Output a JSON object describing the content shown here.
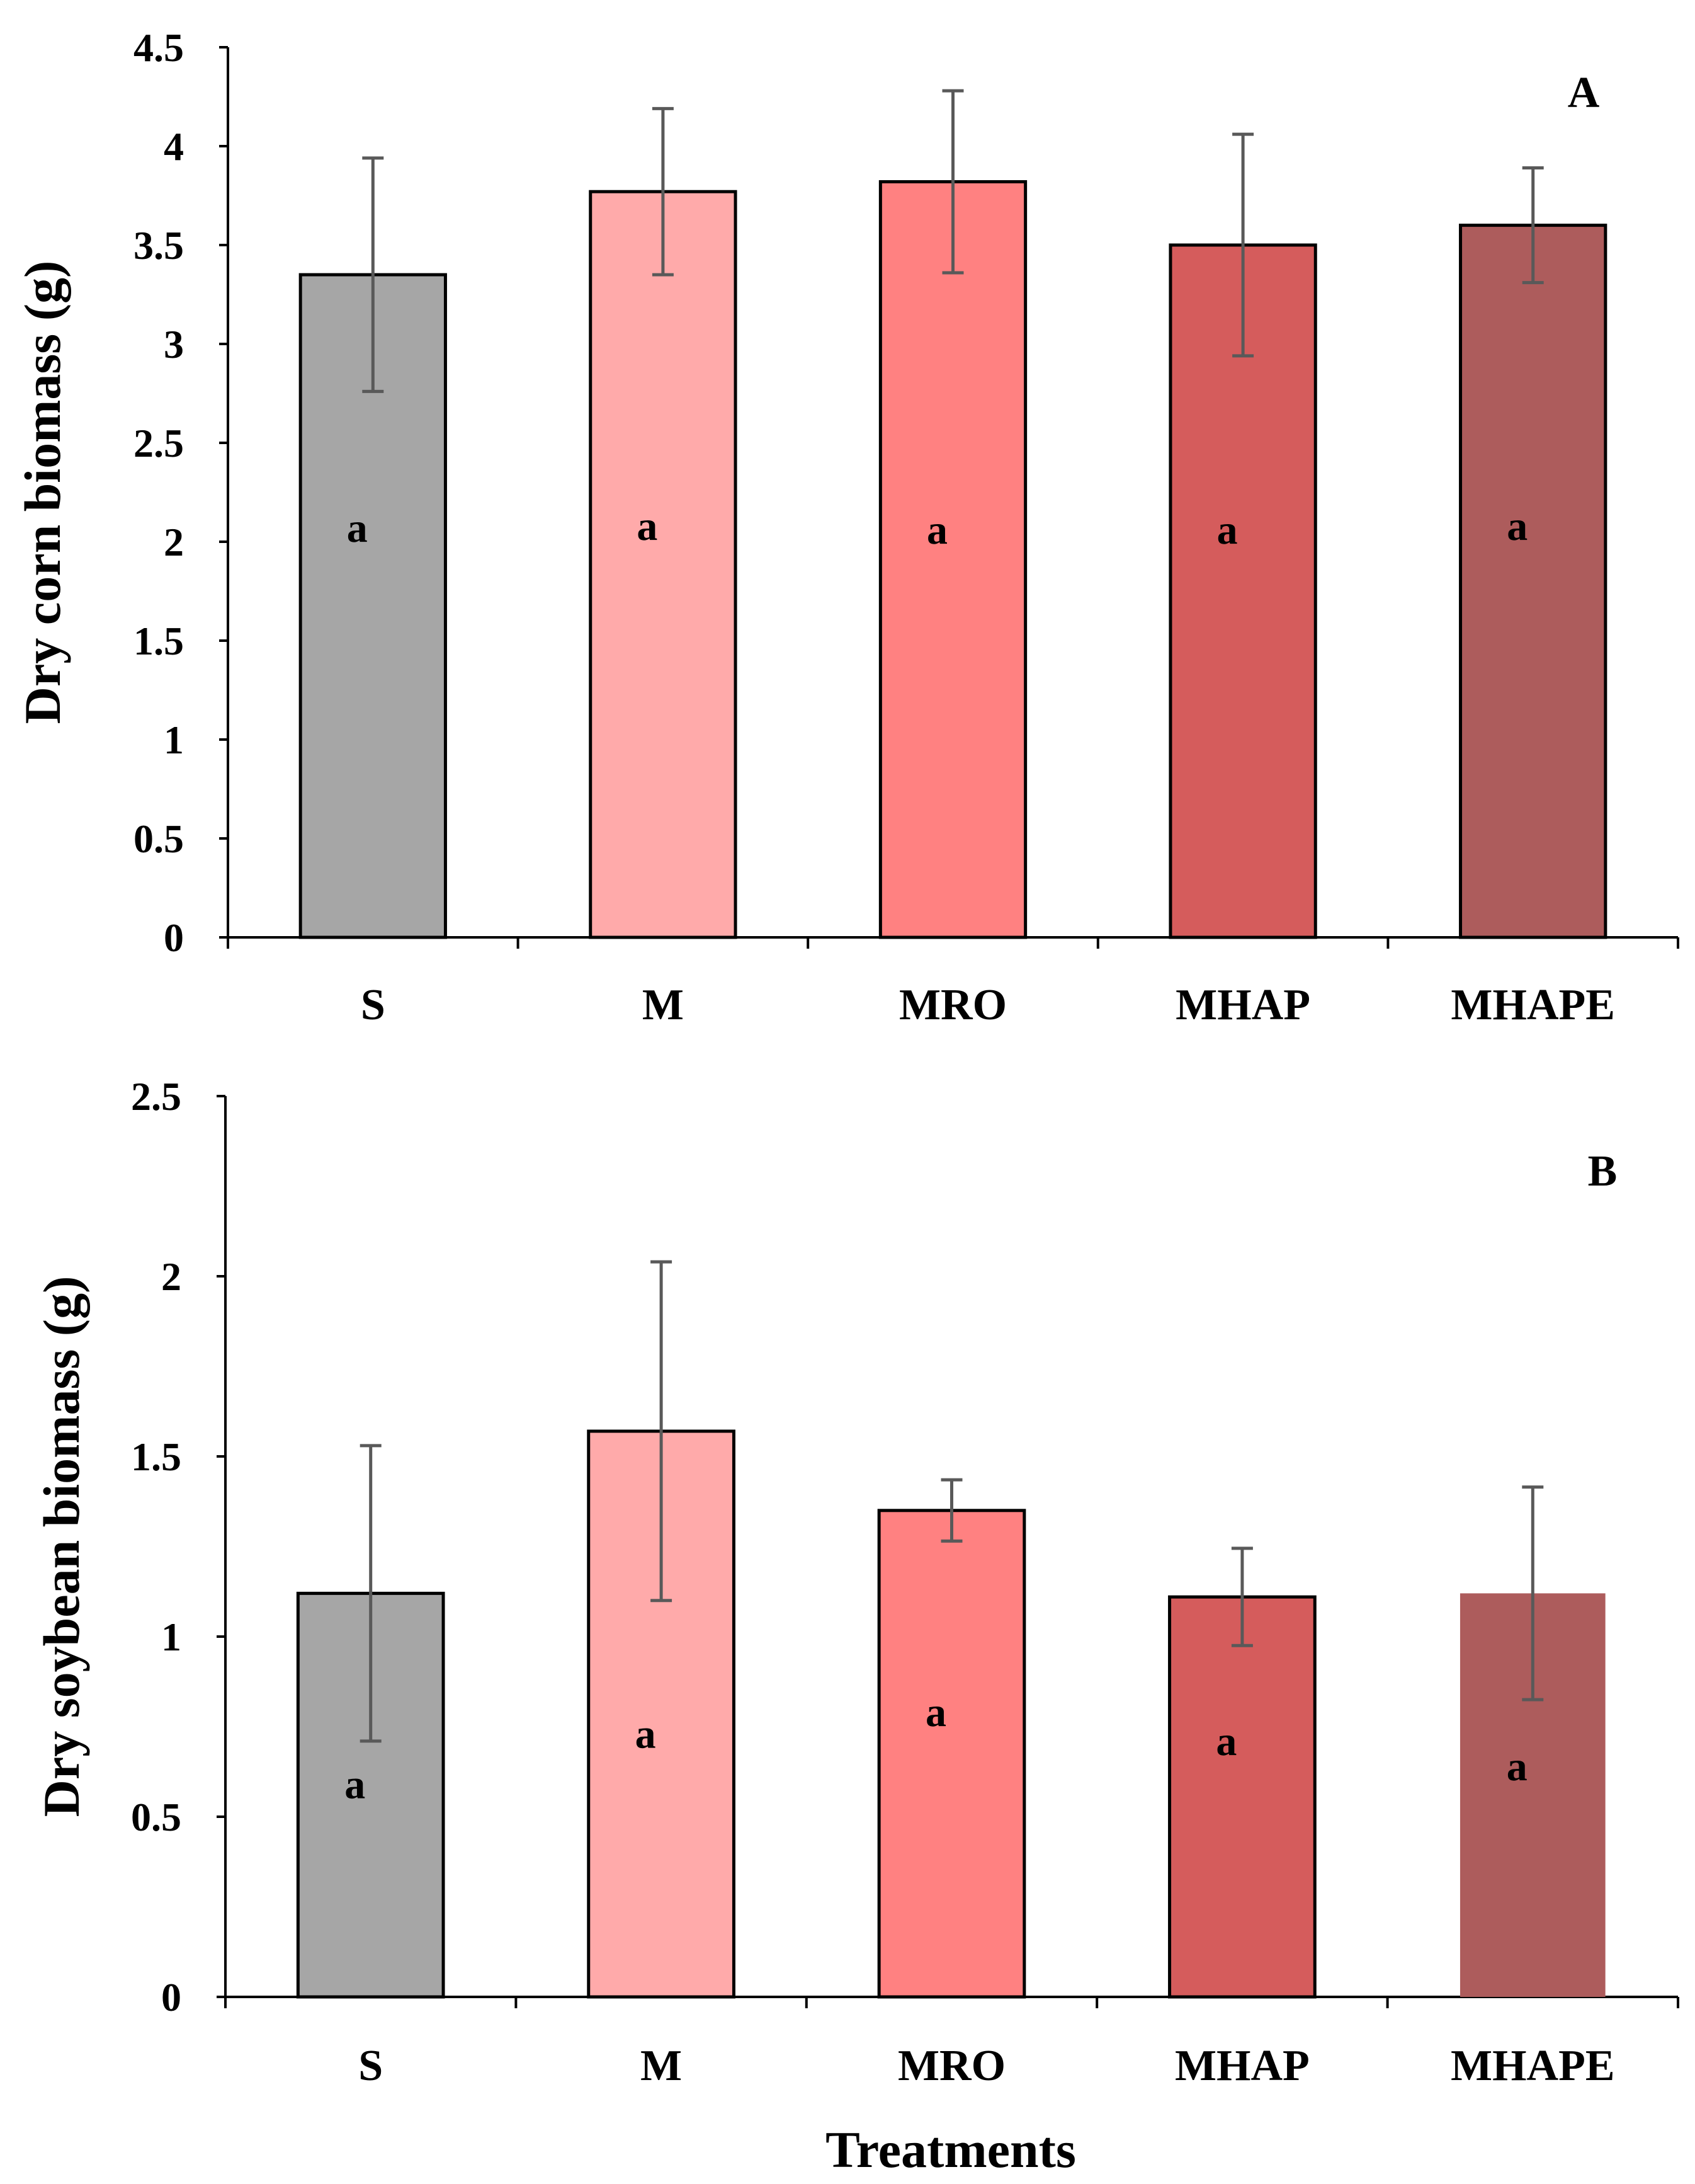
{
  "figure": {
    "xlabel": "Treatments"
  },
  "chart_data": [
    {
      "type": "bar",
      "panel": "A",
      "title": "",
      "xlabel": "",
      "ylabel": "Dry corn  biomass (g)",
      "ylim": [
        0,
        4.5
      ],
      "ytick_step": 0.5,
      "yticks": [
        "0",
        "0.5",
        "1",
        "1.5",
        "2",
        "2.5",
        "3",
        "3.5",
        "4",
        "4.5"
      ],
      "grid": false,
      "legend": "none",
      "categories": [
        "S",
        "M",
        "MRO",
        "MHAP",
        "MHAPE"
      ],
      "values": [
        3.35,
        3.77,
        3.82,
        3.5,
        3.6
      ],
      "errors": [
        0.59,
        0.42,
        0.46,
        0.56,
        0.29
      ],
      "significance": [
        "a",
        "a",
        "a",
        "a",
        "a"
      ],
      "significance_y": [
        2.07,
        2.08,
        2.06,
        2.06,
        2.08
      ],
      "colors": [
        "#a6a6a6",
        "#ffaaaa",
        "#ff8181",
        "#d55c5c",
        "#ad5c5c"
      ],
      "outlined": [
        true,
        true,
        true,
        true,
        true
      ]
    },
    {
      "type": "bar",
      "panel": "B",
      "title": "",
      "xlabel": "Treatments",
      "ylabel": "Dry soybean biomass (g)",
      "ylim": [
        0,
        2.5
      ],
      "ytick_step": 0.5,
      "yticks": [
        "0",
        "0.5",
        "1",
        "1.5",
        "2",
        "2.5"
      ],
      "grid": false,
      "legend": "none",
      "categories": [
        "S",
        "M",
        "MRO",
        "MHAP",
        "MHAPE"
      ],
      "values": [
        1.12,
        1.57,
        1.35,
        1.11,
        1.12
      ],
      "errors": [
        0.41,
        0.47,
        0.085,
        0.135,
        0.295
      ],
      "significance": [
        "a",
        "a",
        "a",
        "a",
        "a"
      ],
      "significance_y": [
        0.59,
        0.73,
        0.79,
        0.71,
        0.64
      ],
      "colors": [
        "#a6a6a6",
        "#ffaaaa",
        "#ff8181",
        "#d55c5c",
        "#ad5c5c"
      ],
      "outlined": [
        true,
        true,
        true,
        true,
        false
      ]
    }
  ]
}
